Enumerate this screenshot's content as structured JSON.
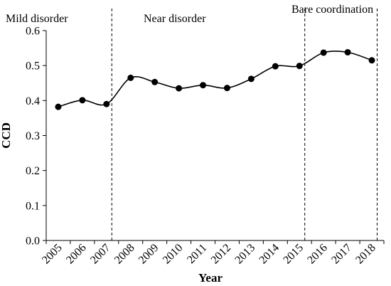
{
  "chart_data": {
    "type": "line",
    "title": "",
    "xlabel": "Year",
    "ylabel": "CCD",
    "x": [
      "2005",
      "2006",
      "2007",
      "2008",
      "2009",
      "2010",
      "2011",
      "2012",
      "2013",
      "2014",
      "2015",
      "2016",
      "2017",
      "2018"
    ],
    "series": [
      {
        "values": [
          0.382,
          0.401,
          0.39,
          0.465,
          0.453,
          0.435,
          0.444,
          0.436,
          0.462,
          0.498,
          0.499,
          0.537,
          0.538,
          0.515
        ]
      }
    ],
    "ylim": [
      0,
      0.6
    ],
    "yticks": [
      "0.0",
      "0.1",
      "0.2",
      "0.3",
      "0.4",
      "0.5",
      "0.6"
    ],
    "grid": false,
    "legend": "none",
    "line_color": "#000000",
    "marker_color": "#000000",
    "divider_after_years": [
      "2007",
      "2015",
      "2018"
    ],
    "regions": [
      {
        "label": "Mild disorder"
      },
      {
        "label": "Near disorder"
      },
      {
        "label": "Bare coordination"
      }
    ]
  }
}
